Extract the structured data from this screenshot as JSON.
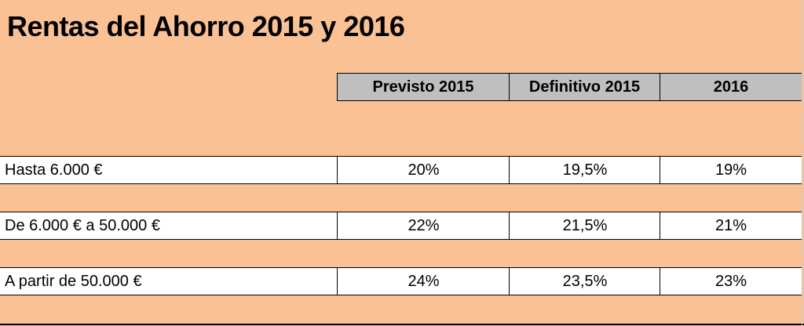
{
  "title": "Rentas del Ahorro 2015 y 2016",
  "table": {
    "headers": [
      "Previsto 2015",
      "Definitivo 2015",
      "2016"
    ],
    "rows": [
      {
        "label": "Hasta 6.000 €",
        "values": [
          "20%",
          "19,5%",
          "19%"
        ]
      },
      {
        "label": "De 6.000 € a 50.000 €",
        "values": [
          "22%",
          "21,5%",
          "21%"
        ]
      },
      {
        "label": "A partir de 50.000 €",
        "values": [
          "24%",
          "23,5%",
          "23%"
        ]
      }
    ]
  },
  "colors": {
    "background": "#f9c194",
    "header_fill": "#bfbfbf",
    "row_fill": "#ffffff"
  }
}
